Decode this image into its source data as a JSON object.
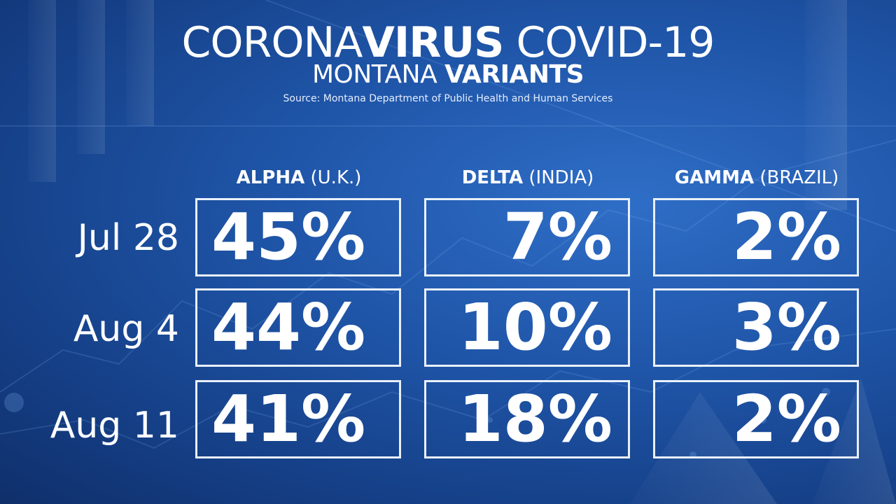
{
  "header": {
    "title_part1": "CORONA",
    "title_part2": "VIRUS",
    "title_part3": " COVID-19",
    "subtitle_part1": "MONTANA ",
    "subtitle_part2": "VARIANTS",
    "source": "Source: Montana Department of Public Health and Human Services"
  },
  "chart_data": {
    "type": "table",
    "columns": [
      {
        "name": "ALPHA",
        "region": "(U.K.)"
      },
      {
        "name": "DELTA",
        "region": "(INDIA)"
      },
      {
        "name": "GAMMA",
        "region": "(BRAZIL)"
      }
    ],
    "rows": [
      {
        "date": "Jul 28",
        "cells": [
          "45%",
          "7%",
          "2%"
        ]
      },
      {
        "date": "Aug 4",
        "cells": [
          "44%",
          "10%",
          "3%"
        ]
      },
      {
        "date": "Aug 11",
        "cells": [
          "41%",
          "18%",
          "2%"
        ]
      }
    ],
    "values": [
      [
        45,
        7,
        2
      ],
      [
        44,
        10,
        3
      ],
      [
        41,
        18,
        2
      ]
    ]
  }
}
